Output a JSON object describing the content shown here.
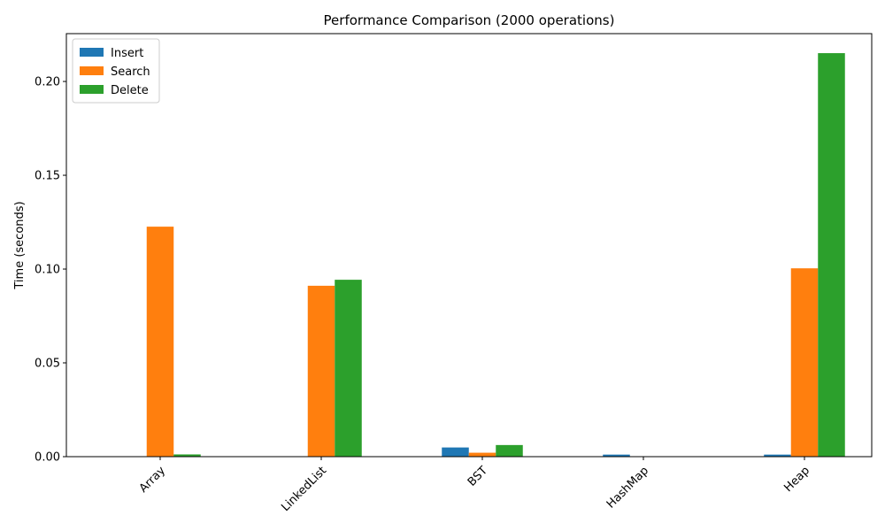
{
  "chart_data": {
    "type": "bar",
    "title": "Performance Comparison (2000 operations)",
    "xlabel": "",
    "ylabel": "Time (seconds)",
    "categories": [
      "Array",
      "LinkedList",
      "BST",
      "HashMap",
      "Heap"
    ],
    "ylim": [
      0,
      0.2255
    ],
    "yticks": [
      0.0,
      0.05,
      0.1,
      0.15,
      0.2
    ],
    "ytick_labels": [
      "0.00",
      "0.05",
      "0.10",
      "0.15",
      "0.20"
    ],
    "legend_position": "top-left",
    "grid": false,
    "series": [
      {
        "name": "Insert",
        "color": "#1f77b4",
        "values": [
          0.0001,
          0.0001,
          0.0049,
          0.0011,
          0.0011
        ]
      },
      {
        "name": "Search",
        "color": "#ff7f0e",
        "values": [
          0.1226,
          0.0911,
          0.0021,
          0.0002,
          0.1004
        ]
      },
      {
        "name": "Delete",
        "color": "#2ca02c",
        "values": [
          0.0012,
          0.0943,
          0.0062,
          0.0002,
          0.2151
        ]
      }
    ]
  }
}
